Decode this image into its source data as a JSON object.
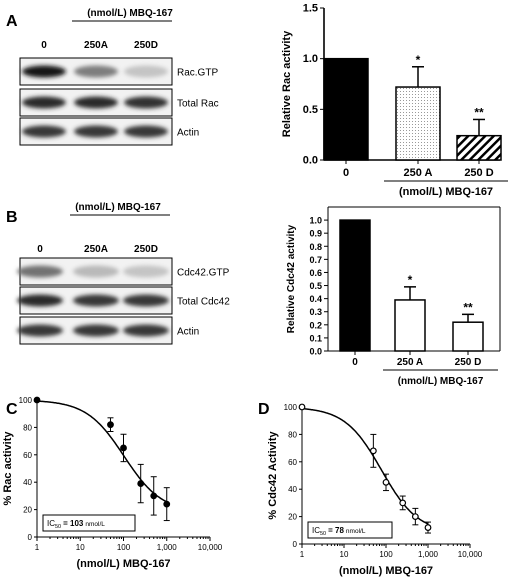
{
  "panels": {
    "A": {
      "letter": "A",
      "treatment_label": "(nmol/L) MBQ-167",
      "lanes": [
        "0",
        "250A",
        "250D"
      ],
      "blots": [
        {
          "label": "Rac.GTP",
          "intensity": [
            1.0,
            0.55,
            0.25
          ]
        },
        {
          "label": "Total Rac",
          "intensity": [
            0.9,
            0.9,
            0.88
          ]
        },
        {
          "label": "Actin",
          "intensity": [
            0.85,
            0.85,
            0.85
          ]
        }
      ]
    },
    "B": {
      "letter": "B",
      "treatment_label": "(nmol/L) MBQ-167",
      "lanes": [
        "0",
        "250A",
        "250D"
      ],
      "blots": [
        {
          "label": "Cdc42.GTP",
          "intensity": [
            0.6,
            0.3,
            0.25
          ]
        },
        {
          "label": "Total Cdc42",
          "intensity": [
            0.9,
            0.85,
            0.85
          ]
        },
        {
          "label": "Actin",
          "intensity": [
            0.85,
            0.85,
            0.85
          ]
        }
      ]
    },
    "C": {
      "letter": "C",
      "ic50_label": "IC",
      "ic50_sub": "50",
      "ic50_value": "= 103",
      "ic50_unit": "nmol/L"
    },
    "D": {
      "letter": "D",
      "ic50_label": "IC",
      "ic50_sub": "50",
      "ic50_value": "= 78",
      "ic50_unit": "nmol/L"
    }
  },
  "chart_data": [
    {
      "panel": "A",
      "type": "bar",
      "categories": [
        "0",
        "250 A",
        "250 D"
      ],
      "values": [
        1.0,
        0.72,
        0.24
      ],
      "errors": [
        0,
        0.2,
        0.16
      ],
      "significance": [
        "",
        "*",
        "**"
      ],
      "fills": [
        "solid",
        "dotted",
        "hatched"
      ],
      "ylabel": "Relative Rac activity",
      "xlabel": "(nmol/L) MBQ-167",
      "ylim": [
        0,
        1.5
      ],
      "yticks": [
        "0.0",
        "0.5",
        "1.0",
        "1.5"
      ]
    },
    {
      "panel": "B",
      "type": "bar",
      "categories": [
        "0",
        "250 A",
        "250 D"
      ],
      "values": [
        1.0,
        0.39,
        0.22
      ],
      "errors": [
        0,
        0.1,
        0.06
      ],
      "significance": [
        "",
        "*",
        "**"
      ],
      "fills": [
        "solid",
        "open",
        "open"
      ],
      "ylabel": "Relative Cdc42 activity",
      "xlabel": "(nmol/L) MBQ-167",
      "ylim": [
        0,
        1.1
      ],
      "yticks": [
        "0.0",
        "0.1",
        "0.2",
        "0.3",
        "0.4",
        "0.5",
        "0.6",
        "0.7",
        "0.8",
        "0.9",
        "1.0"
      ]
    },
    {
      "panel": "C",
      "type": "scatter",
      "series": [
        {
          "x": [
            1,
            50,
            100,
            250,
            500,
            1000
          ],
          "y": [
            100,
            82,
            65,
            39,
            30,
            24
          ],
          "err": [
            0,
            5,
            10,
            14,
            14,
            12
          ]
        }
      ],
      "fit": {
        "top": 100,
        "bottom": 18,
        "ic50": 103
      },
      "ylabel": "% Rac activity",
      "xlabel": "(nmol/L) MBQ-167",
      "xscale": "log",
      "xlim": [
        1,
        10000
      ],
      "ylim": [
        0,
        100
      ],
      "xticks": [
        "1",
        "10",
        "100",
        "1,000",
        "10,000"
      ],
      "yticks": [
        "0",
        "20",
        "40",
        "60",
        "80",
        "100"
      ],
      "marker": "filled"
    },
    {
      "panel": "D",
      "type": "scatter",
      "series": [
        {
          "x": [
            1,
            50,
            100,
            250,
            500,
            1000
          ],
          "y": [
            100,
            68,
            45,
            30,
            20,
            12
          ],
          "err": [
            0,
            12,
            6,
            5,
            6,
            4
          ]
        }
      ],
      "fit": {
        "top": 100,
        "bottom": 8,
        "ic50": 78
      },
      "ylabel": "% Cdc42 Activity",
      "xlabel": "(nmol/L) MBQ-167",
      "xscale": "log",
      "xlim": [
        1,
        10000
      ],
      "ylim": [
        0,
        100
      ],
      "xticks": [
        "1",
        "10",
        "100",
        "1,000",
        "10,000"
      ],
      "yticks": [
        "0",
        "20",
        "40",
        "60",
        "80",
        "100"
      ],
      "marker": "open"
    }
  ]
}
